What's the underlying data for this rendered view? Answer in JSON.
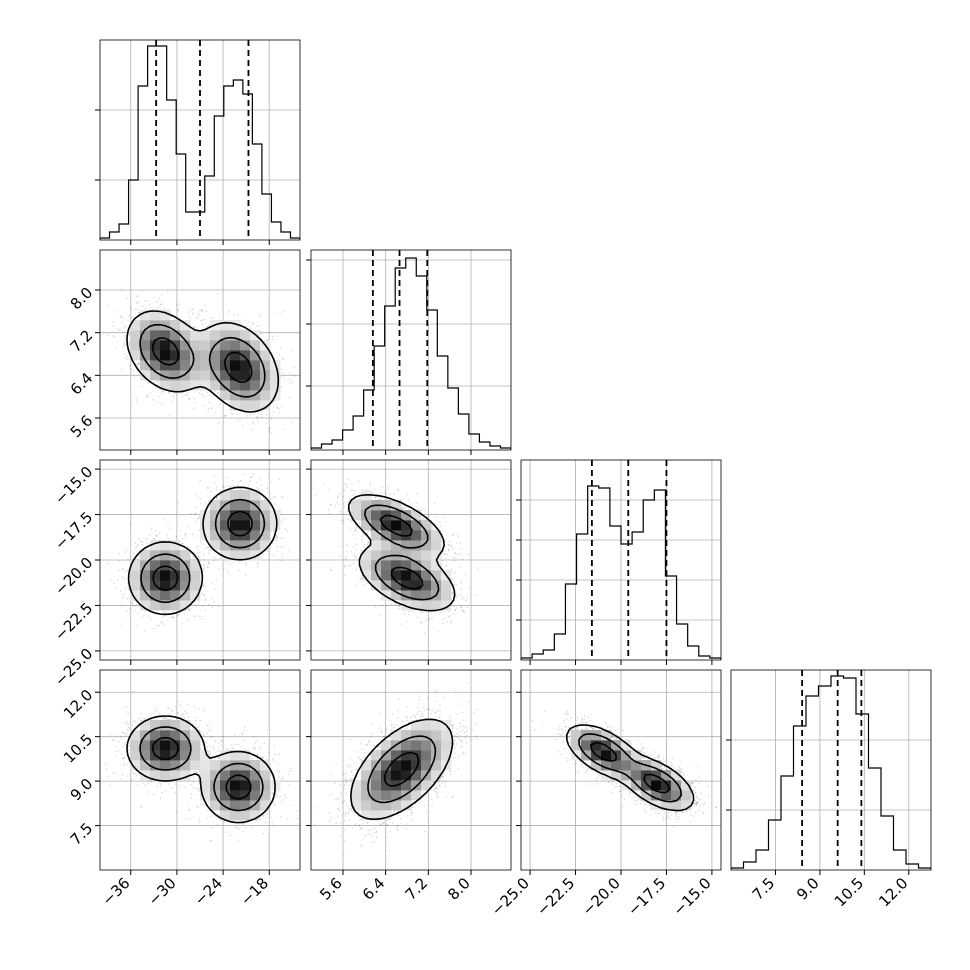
{
  "chart_data": {
    "type": "corner",
    "parameters": [
      {
        "range": [
          -40,
          -14
        ],
        "ticks": [
          -36,
          -30,
          -24,
          -18
        ],
        "tick_labels": [
          "−36",
          "−30",
          "−24",
          "−18"
        ],
        "quantiles": [
          -32.7,
          -27.0,
          -20.7
        ],
        "hist_heights": [
          0.01,
          0.04,
          0.08,
          0.3,
          0.77,
          0.97,
          0.97,
          0.7,
          0.43,
          0.14,
          0.14,
          0.32,
          0.62,
          0.77,
          0.8,
          0.73,
          0.48,
          0.23,
          0.09,
          0.04,
          0.01
        ],
        "hist_yticks": [
          0.3,
          0.65
        ]
      },
      {
        "range": [
          5.0,
          8.75
        ],
        "ticks": [
          5.6,
          6.4,
          7.2,
          8.0
        ],
        "tick_labels": [
          "5.6",
          "6.4",
          "7.2",
          "8.0"
        ],
        "quantiles": [
          6.16,
          6.66,
          7.18
        ],
        "hist_heights": [
          0.01,
          0.03,
          0.05,
          0.1,
          0.17,
          0.3,
          0.52,
          0.72,
          0.91,
          0.96,
          0.87,
          0.7,
          0.47,
          0.31,
          0.18,
          0.08,
          0.04,
          0.02,
          0.01
        ],
        "hist_yticks": [
          0.32,
          0.63,
          0.95
        ]
      },
      {
        "range": [
          -25.5,
          -14.5
        ],
        "ticks": [
          -25.0,
          -22.5,
          -20.0,
          -17.5,
          -15.0
        ],
        "tick_labels": [
          "−25.0",
          "−22.5",
          "−20.0",
          "−17.5",
          "−15.0"
        ],
        "quantiles": [
          -21.6,
          -19.6,
          -17.5
        ],
        "hist_heights": [
          0.01,
          0.03,
          0.05,
          0.13,
          0.38,
          0.63,
          0.87,
          0.86,
          0.67,
          0.58,
          0.64,
          0.8,
          0.85,
          0.42,
          0.18,
          0.07,
          0.02,
          0.01
        ],
        "hist_yticks": [
          0.2,
          0.4,
          0.6,
          0.8
        ]
      },
      {
        "range": [
          6.0,
          12.75
        ],
        "ticks": [
          7.5,
          9.0,
          10.5,
          12.0
        ],
        "tick_labels": [
          "7.5",
          "9.0",
          "10.5",
          "12.0"
        ],
        "quantiles": [
          8.4,
          9.6,
          10.4
        ],
        "hist_heights": [
          0.01,
          0.04,
          0.1,
          0.25,
          0.47,
          0.72,
          0.87,
          0.92,
          0.97,
          0.96,
          0.78,
          0.51,
          0.27,
          0.1,
          0.03,
          0.01
        ],
        "hist_yticks": [
          0.3,
          0.65
        ]
      }
    ],
    "joint": {
      "1_0": {
        "modes": [
          {
            "mx": -31.5,
            "my": 6.85,
            "sx": 2.5,
            "sy": 0.38,
            "rho": -0.3
          },
          {
            "mx": -22.0,
            "my": 6.55,
            "sx": 2.6,
            "sy": 0.42,
            "rho": -0.3
          }
        ]
      },
      "2_0": {
        "modes": [
          {
            "mx": -31.5,
            "my": -21.0,
            "sx": 2.4,
            "sy": 1.0,
            "rho": 0.0
          },
          {
            "mx": -21.8,
            "my": -18.0,
            "sx": 2.4,
            "sy": 1.0,
            "rho": 0.0
          }
        ]
      },
      "3_0": {
        "modes": [
          {
            "mx": -31.5,
            "my": 10.1,
            "sx": 2.5,
            "sy": 0.55,
            "rho": 0.0
          },
          {
            "mx": -22.0,
            "my": 8.8,
            "sx": 2.4,
            "sy": 0.6,
            "rho": 0.0
          }
        ]
      },
      "2_1": {
        "modes": [
          {
            "mx": 6.6,
            "my": -18.1,
            "sx": 0.45,
            "sy": 0.85,
            "rho": -0.6
          },
          {
            "mx": 6.8,
            "my": -21.0,
            "sx": 0.45,
            "sy": 0.9,
            "rho": -0.5
          }
        ]
      },
      "3_1": {
        "modes": [
          {
            "mx": 6.7,
            "my": 9.4,
            "sx": 0.48,
            "sy": 0.85,
            "rho": 0.55
          }
        ]
      },
      "3_2": {
        "modes": [
          {
            "mx": -21.0,
            "my": 10.0,
            "sx": 1.0,
            "sy": 0.45,
            "rho": -0.55
          },
          {
            "mx": -18.0,
            "my": 8.9,
            "sx": 1.0,
            "sy": 0.45,
            "rho": -0.55
          }
        ]
      }
    },
    "contour_levels": [
      0.39,
      0.86,
      1.0
    ],
    "grid": true
  }
}
